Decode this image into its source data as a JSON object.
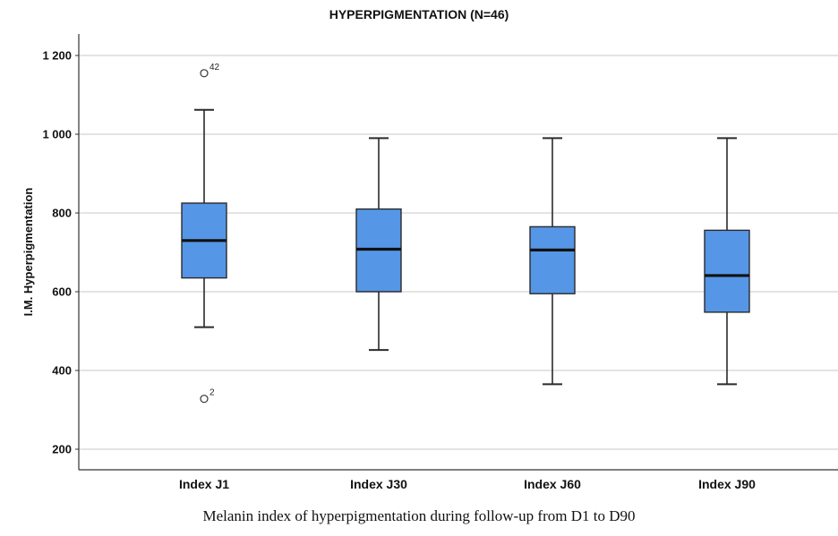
{
  "chart_data": {
    "type": "boxplot",
    "title": "HYPERPIGMENTATION (N=46)",
    "ylabel": "I.M. Hyperpigmentation",
    "xlabel": "",
    "caption": "Melanin index of hyperpigmentation during follow-up from D1 to D90",
    "ylim": [
      150,
      1250
    ],
    "yticks": [
      200,
      400,
      600,
      800,
      1000,
      1200
    ],
    "ytick_labels": [
      "200",
      "400",
      "600",
      "800",
      "1 000",
      "1 200"
    ],
    "grid": true,
    "categories": [
      "Index J1",
      "Index J30",
      "Index J60",
      "Index J90"
    ],
    "boxes": [
      {
        "whisker_low": 510,
        "q1": 635,
        "median": 730,
        "q3": 825,
        "whisker_high": 1062,
        "outliers": [
          {
            "value": 1155,
            "label": "42"
          },
          {
            "value": 328,
            "label": "2"
          }
        ]
      },
      {
        "whisker_low": 452,
        "q1": 600,
        "median": 708,
        "q3": 810,
        "whisker_high": 990,
        "outliers": []
      },
      {
        "whisker_low": 365,
        "q1": 595,
        "median": 706,
        "q3": 765,
        "whisker_high": 990,
        "outliers": []
      },
      {
        "whisker_low": 365,
        "q1": 548,
        "median": 641,
        "q3": 756,
        "whisker_high": 990,
        "outliers": []
      }
    ],
    "colors": {
      "box_fill": "#5596E6",
      "box_stroke": "#2a2a2a",
      "grid": "#d4d4d4",
      "axis": "#333333"
    }
  }
}
